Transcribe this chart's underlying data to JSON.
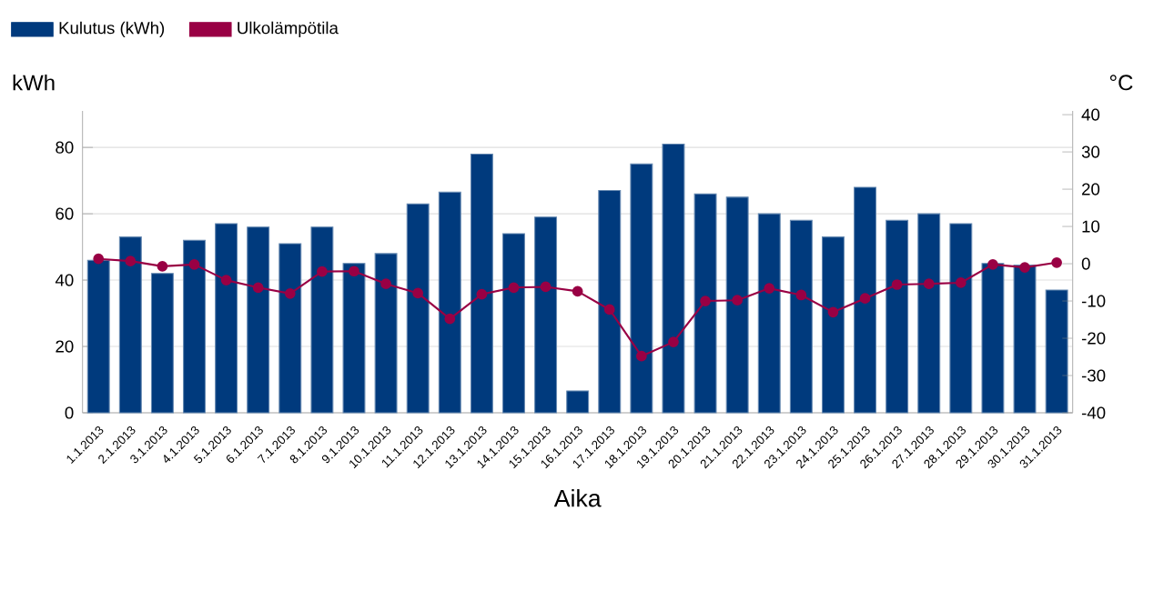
{
  "chart_data": {
    "type": "bar",
    "xlabel": "Aika",
    "ylabel": "kWh",
    "y2label": "°C",
    "categories": [
      "1.1.2013",
      "2.1.2013",
      "3.1.2013",
      "4.1.2013",
      "5.1.2013",
      "6.1.2013",
      "7.1.2013",
      "8.1.2013",
      "9.1.2013",
      "10.1.2013",
      "11.1.2013",
      "12.1.2013",
      "13.1.2013",
      "14.1.2013",
      "15.1.2013",
      "16.1.2013",
      "17.1.2013",
      "18.1.2013",
      "19.1.2013",
      "20.1.2013",
      "21.1.2013",
      "22.1.2013",
      "23.1.2013",
      "24.1.2013",
      "25.1.2013",
      "26.1.2013",
      "27.1.2013",
      "28.1.2013",
      "29.1.2013",
      "30.1.2013",
      "31.1.2013"
    ],
    "series": [
      {
        "name": "Kulutus (kWh)",
        "color": "#003a7d",
        "values": [
          46,
          53,
          42,
          52,
          57,
          56,
          51,
          56,
          45,
          48,
          63,
          66.5,
          78,
          54,
          59,
          6.6,
          67,
          75,
          81,
          66,
          65,
          60,
          58,
          53,
          68,
          58,
          60,
          57,
          45,
          44.5,
          37
        ]
      },
      {
        "name": "Ulkolämpötila",
        "type": "line",
        "axis": "y2",
        "color": "#990044",
        "marker": "circle",
        "line_style": "solid",
        "values": [
          1.3,
          0.7,
          -0.7,
          -0.2,
          -4.4,
          -6.4,
          -8,
          -2.1,
          -2,
          -5.4,
          -7.9,
          -14.8,
          -8.2,
          -6.4,
          -6.2,
          -7.4,
          -12.3,
          -24.8,
          -21,
          -10,
          -9.8,
          -6.6,
          -8.4,
          -13,
          -9.3,
          -5.6,
          -5.4,
          -5.1,
          -0.2,
          -1,
          0.3
        ]
      }
    ],
    "ylim": [
      0,
      91
    ],
    "yticks": [
      0,
      20,
      40,
      60,
      80
    ],
    "y2lim": [
      -40,
      41
    ],
    "y2ticks": [
      -40,
      -30,
      -20,
      -10,
      0,
      10,
      20,
      30,
      40
    ],
    "grid": "y",
    "legend": "top left"
  }
}
